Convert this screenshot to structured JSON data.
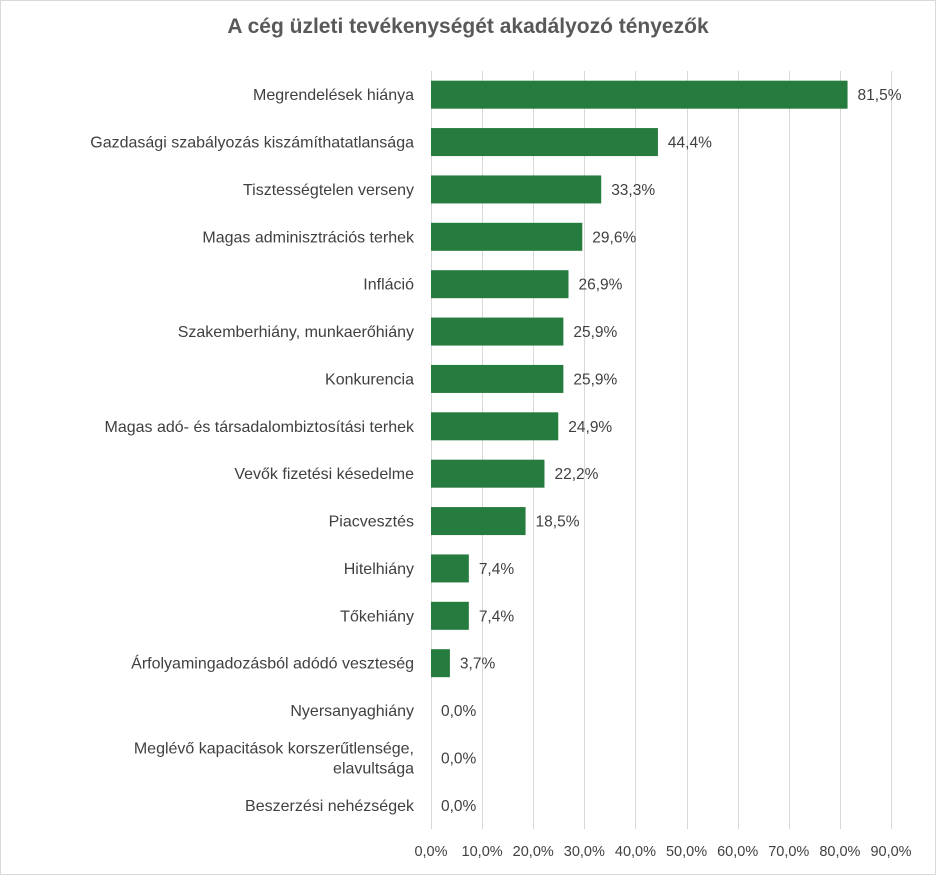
{
  "chart_data": {
    "type": "bar",
    "orientation": "horizontal",
    "title": "A cég üzleti tevékenységét akadályozó tényezők",
    "categories": [
      "Megrendelések hiánya",
      "Gazdasági szabályozás kiszámíthatatlansága",
      "Tisztességtelen verseny",
      "Magas adminisztrációs terhek",
      "Infláció",
      "Szakemberhiány, munkaerőhiány",
      "Konkurencia",
      "Magas adó- és társadalombiztosítási terhek",
      "Vevők fizetési késedelme",
      "Piacvesztés",
      "Hitelhiány",
      "Tőkehiány",
      "Árfolyamingadozásból adódó veszteség",
      "Nyersanyaghiány",
      "Meglévő kapacitások korszerűtlensége, elavultsága",
      "Beszerzési nehézségek"
    ],
    "category_lines": [
      [
        "Megrendelések hiánya"
      ],
      [
        "Gazdasági szabályozás kiszámíthatatlansága"
      ],
      [
        "Tisztességtelen verseny"
      ],
      [
        "Magas adminisztrációs terhek"
      ],
      [
        "Infláció"
      ],
      [
        "Szakemberhiány, munkaerőhiány"
      ],
      [
        "Konkurencia"
      ],
      [
        "Magas adó- és társadalombiztosítási terhek"
      ],
      [
        "Vevők fizetési késedelme"
      ],
      [
        "Piacvesztés"
      ],
      [
        "Hitelhiány"
      ],
      [
        "Tőkehiány"
      ],
      [
        "Árfolyamingadozásból adódó veszteség"
      ],
      [
        "Nyersanyaghiány"
      ],
      [
        "Meglévő kapacitások korszerűtlensége,",
        "elavultsága"
      ],
      [
        "Beszerzési nehézségek"
      ]
    ],
    "values": [
      81.5,
      44.4,
      33.3,
      29.6,
      26.9,
      25.9,
      25.9,
      24.9,
      22.2,
      18.5,
      7.4,
      7.4,
      3.7,
      0.0,
      0.0,
      0.0
    ],
    "data_labels": [
      "81,5%",
      "44,4%",
      "33,3%",
      "29,6%",
      "26,9%",
      "25,9%",
      "25,9%",
      "24,9%",
      "22,2%",
      "18,5%",
      "7,4%",
      "7,4%",
      "3,7%",
      "0,0%",
      "0,0%",
      "0,0%"
    ],
    "xlim": [
      0,
      90
    ],
    "x_ticks": [
      0,
      10,
      20,
      30,
      40,
      50,
      60,
      70,
      80,
      90
    ],
    "x_tick_labels": [
      "0,0%",
      "10,0%",
      "20,0%",
      "30,0%",
      "40,0%",
      "50,0%",
      "60,0%",
      "70,0%",
      "80,0%",
      "90,0%"
    ],
    "xlabel": "",
    "ylabel": "",
    "grid": "vertical",
    "legend": "none",
    "colors": {
      "bar": "#267B3E",
      "gridline": "#d9d9d9",
      "text": "#404040",
      "title": "#595959"
    }
  }
}
